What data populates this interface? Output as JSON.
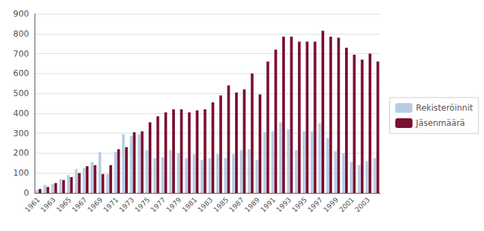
{
  "chart_data": {
    "type": "bar",
    "categories": [
      "1961",
      null,
      "1963",
      null,
      "1965",
      null,
      "1967",
      null,
      "1969",
      null,
      "1971",
      null,
      "1973",
      null,
      "1975",
      null,
      "1977",
      null,
      "1979",
      null,
      "1981",
      null,
      "1983",
      null,
      "1985",
      null,
      "1987",
      null,
      "1989",
      null,
      "1991",
      null,
      "1993",
      null,
      "1995",
      null,
      "1997",
      null,
      "1999",
      null,
      "2001",
      null,
      "2003",
      null
    ],
    "series": [
      {
        "name": "Rekisteröinnit",
        "color": "#b8cce4",
        "values": [
          15,
          40,
          45,
          70,
          90,
          120,
          125,
          155,
          205,
          95,
          205,
          295,
          285,
          295,
          215,
          175,
          180,
          215,
          200,
          175,
          195,
          165,
          175,
          195,
          175,
          195,
          215,
          220,
          165,
          305,
          310,
          355,
          320,
          215,
          310,
          310,
          350,
          275,
          210,
          200,
          155,
          140,
          160,
          175
        ]
      },
      {
        "name": "Jäsenmäärä",
        "color": "#7b1030",
        "values": [
          20,
          30,
          50,
          65,
          80,
          100,
          135,
          140,
          95,
          140,
          220,
          230,
          305,
          310,
          355,
          385,
          405,
          420,
          420,
          405,
          415,
          420,
          455,
          490,
          540,
          505,
          520,
          600,
          495,
          660,
          720,
          785,
          785,
          760,
          760,
          760,
          815,
          785,
          780,
          730,
          695,
          670,
          700,
          660
        ]
      }
    ],
    "ylim": [
      0,
      900
    ],
    "yticks": [
      0,
      100,
      200,
      300,
      400,
      500,
      600,
      700,
      800,
      900
    ],
    "grid": true,
    "legend": "right"
  }
}
